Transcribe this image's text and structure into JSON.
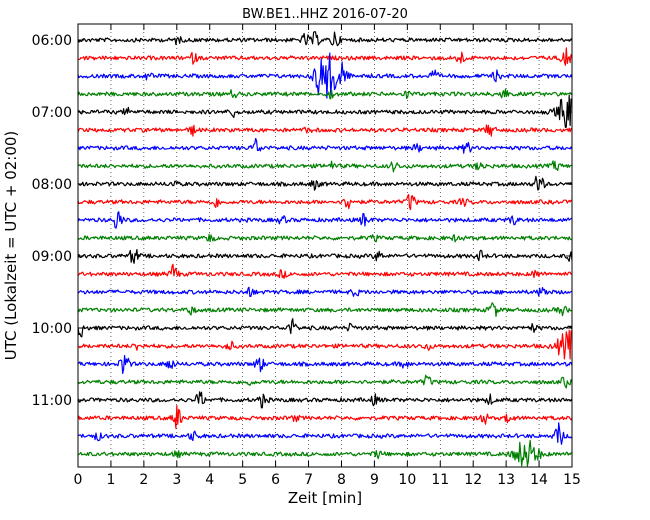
{
  "chart_data": {
    "type": "line",
    "title": "BW.BE1..HHZ 2016-07-20",
    "xlabel": "Zeit  [min]",
    "ylabel": "UTC (Lokalzeit = UTC + 02:00)",
    "xlim": [
      0,
      15
    ],
    "x_ticks": [
      "0",
      "1",
      "2",
      "3",
      "4",
      "5",
      "6",
      "7",
      "8",
      "9",
      "10",
      "11",
      "12",
      "13",
      "14",
      "15"
    ],
    "y_tick_labels": [
      "06:00",
      "07:00",
      "08:00",
      "09:00",
      "10:00",
      "11:00"
    ],
    "row_interval_min": 15,
    "grid": "vertical dotted",
    "trace_colors": [
      "#000000",
      "#ff0000",
      "#0000ff",
      "#008000"
    ],
    "rows": [
      {
        "time": "06:00",
        "events": [
          [
            6.9,
            0.25
          ],
          [
            7.2,
            0.3
          ],
          [
            7.8,
            0.4
          ],
          [
            3.0,
            0.15
          ]
        ]
      },
      {
        "time": "06:15",
        "events": [
          [
            3.5,
            0.2
          ],
          [
            11.6,
            0.3
          ],
          [
            14.8,
            0.5
          ]
        ]
      },
      {
        "time": "06:30",
        "events": [
          [
            7.6,
            1.0
          ],
          [
            7.3,
            0.45
          ],
          [
            8.0,
            0.45
          ],
          [
            2.1,
            0.15
          ],
          [
            10.8,
            0.2
          ],
          [
            12.7,
            0.2
          ]
        ]
      },
      {
        "time": "06:45",
        "events": [
          [
            4.7,
            0.15
          ],
          [
            10.0,
            0.15
          ],
          [
            12.9,
            0.3
          ],
          [
            7.7,
            0.15
          ]
        ]
      },
      {
        "time": "07:00",
        "events": [
          [
            4.7,
            0.2
          ],
          [
            14.9,
            0.8
          ],
          [
            1.5,
            0.15
          ]
        ]
      },
      {
        "time": "07:15",
        "events": [
          [
            3.5,
            0.2
          ],
          [
            12.5,
            0.3
          ],
          [
            7.0,
            0.1
          ]
        ]
      },
      {
        "time": "07:30",
        "events": [
          [
            5.4,
            0.4
          ],
          [
            11.8,
            0.25
          ],
          [
            10.3,
            0.15
          ]
        ]
      },
      {
        "time": "07:45",
        "events": [
          [
            9.6,
            0.2
          ],
          [
            12.2,
            0.2
          ],
          [
            14.5,
            0.2
          ],
          [
            7.7,
            0.15
          ]
        ]
      },
      {
        "time": "08:00",
        "events": [
          [
            14.0,
            0.55
          ],
          [
            7.2,
            0.2
          ],
          [
            2.9,
            0.1
          ]
        ]
      },
      {
        "time": "08:15",
        "events": [
          [
            10.1,
            0.4
          ],
          [
            8.2,
            0.35
          ],
          [
            4.2,
            0.2
          ],
          [
            11.7,
            0.15
          ]
        ]
      },
      {
        "time": "08:30",
        "events": [
          [
            1.2,
            0.5
          ],
          [
            8.7,
            0.3
          ],
          [
            13.2,
            0.2
          ],
          [
            6.2,
            0.15
          ]
        ]
      },
      {
        "time": "08:45",
        "events": [
          [
            4.0,
            0.15
          ],
          [
            11.5,
            0.15
          ],
          [
            9.0,
            0.1
          ]
        ]
      },
      {
        "time": "09:00",
        "events": [
          [
            1.7,
            0.4
          ],
          [
            9.1,
            0.2
          ],
          [
            12.2,
            0.2
          ],
          [
            15.0,
            0.3
          ]
        ]
      },
      {
        "time": "09:15",
        "events": [
          [
            2.9,
            0.4
          ],
          [
            13.9,
            0.15
          ],
          [
            6.2,
            0.15
          ]
        ]
      },
      {
        "time": "09:30",
        "events": [
          [
            5.2,
            0.2
          ],
          [
            8.4,
            0.15
          ],
          [
            14.1,
            0.25
          ]
        ]
      },
      {
        "time": "09:45",
        "events": [
          [
            12.6,
            0.4
          ],
          [
            3.4,
            0.2
          ],
          [
            14.7,
            0.2
          ]
        ]
      },
      {
        "time": "10:00",
        "events": [
          [
            0.1,
            0.35
          ],
          [
            6.5,
            0.35
          ],
          [
            8.3,
            0.15
          ],
          [
            13.8,
            0.15
          ]
        ]
      },
      {
        "time": "10:15",
        "events": [
          [
            14.9,
            0.65
          ],
          [
            4.6,
            0.2
          ],
          [
            1.8,
            0.15
          ],
          [
            10.6,
            0.15
          ]
        ]
      },
      {
        "time": "10:30",
        "events": [
          [
            1.4,
            0.6
          ],
          [
            5.5,
            0.4
          ],
          [
            2.8,
            0.25
          ],
          [
            9.9,
            0.15
          ]
        ]
      },
      {
        "time": "10:45",
        "events": [
          [
            10.6,
            0.25
          ],
          [
            14.8,
            0.2
          ],
          [
            5.2,
            0.1
          ]
        ]
      },
      {
        "time": "11:00",
        "events": [
          [
            3.7,
            0.35
          ],
          [
            5.6,
            0.3
          ],
          [
            9.0,
            0.2
          ],
          [
            12.5,
            0.2
          ]
        ]
      },
      {
        "time": "11:15",
        "events": [
          [
            3.0,
            0.55
          ],
          [
            12.3,
            0.3
          ],
          [
            13.1,
            0.2
          ],
          [
            6.6,
            0.1
          ]
        ]
      },
      {
        "time": "11:30",
        "events": [
          [
            14.6,
            0.55
          ],
          [
            3.5,
            0.2
          ],
          [
            0.6,
            0.15
          ]
        ]
      },
      {
        "time": "11:45",
        "events": [
          [
            13.6,
            0.65
          ],
          [
            9.1,
            0.15
          ],
          [
            3.0,
            0.1
          ]
        ]
      }
    ]
  }
}
